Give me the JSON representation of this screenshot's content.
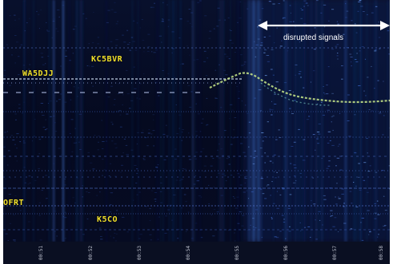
{
  "annotation": {
    "text": "disrupted signals"
  },
  "callsigns": [
    {
      "id": "kc5bvr",
      "text": "KC5BVR"
    },
    {
      "id": "wa5djj",
      "text": "WA5DJJ"
    },
    {
      "id": "ofrt",
      "text": "OFRT"
    },
    {
      "id": "k5co",
      "text": "K5CO"
    }
  ],
  "time_axis": {
    "ticks": [
      "00:51",
      "00:52",
      "00:53",
      "00:54",
      "00:55",
      "00:56",
      "00:57",
      "00:58"
    ]
  },
  "colors": {
    "background": "#040716",
    "callsign": "#f2e12a",
    "annotation": "#ffffff",
    "signal_trace": "#c8e88a"
  }
}
